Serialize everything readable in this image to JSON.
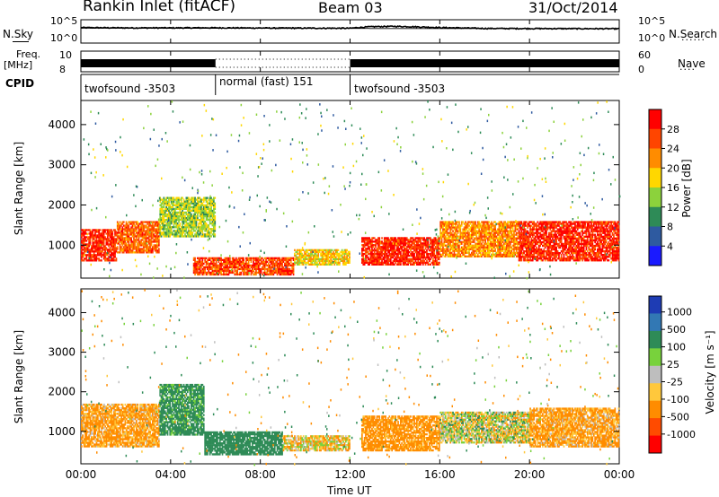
{
  "header": {
    "title": "Rankin Inlet (fitACF)",
    "beam": "Beam 03",
    "date": "31/Oct/2014"
  },
  "noise_panel": {
    "left_label": "N.Sky",
    "right_label": "N.Search",
    "left_top": "10^5",
    "left_bottom": "10^0",
    "right_top": "10^5",
    "right_bottom": "10^0"
  },
  "freq_panel": {
    "left_label_1": "Freq.",
    "left_label_2": "[MHz]",
    "right_label": "Nave",
    "left_top": "10",
    "left_bottom": "8",
    "right_top": "60",
    "right_bottom": "0"
  },
  "cpid_panel": {
    "label": "CPID",
    "segments": [
      {
        "name": "twofsound -3503",
        "start_hour": 0,
        "end_hour": 6
      },
      {
        "name": "normal (fast) 151",
        "start_hour": 6,
        "end_hour": 12
      },
      {
        "name": "twofsound -3503",
        "start_hour": 12,
        "end_hour": 24
      }
    ]
  },
  "power_colorbar": {
    "label": "Power [dB]",
    "ticks": [
      "28",
      "24",
      "20",
      "16",
      "12",
      "8",
      "4"
    ],
    "colors": [
      "#ff0000",
      "#ff4500",
      "#ff8c00",
      "#ffd700",
      "#8cd23c",
      "#2e8b57",
      "#2e5aa0",
      "#1a1aff"
    ]
  },
  "velocity_colorbar": {
    "label": "Velocity [m s⁻¹]",
    "ticks": [
      "1000",
      "500",
      "100",
      "25",
      "-25",
      "-100",
      "-500",
      "-1000"
    ],
    "colors": [
      "#1e3cb4",
      "#3278b4",
      "#2e8b57",
      "#78d23c",
      "#bebebe",
      "#ffc83c",
      "#ff8c00",
      "#ff4b00",
      "#ff0000"
    ]
  },
  "chart_data": [
    {
      "type": "line",
      "title": "",
      "xlabel": "Time UT",
      "x_ticks": [
        "00:00",
        "04:00",
        "08:00",
        "12:00",
        "16:00",
        "20:00",
        "00:00"
      ],
      "xlim": [
        0,
        24
      ],
      "series": [
        {
          "name": "N.Sky",
          "axis": "left",
          "scale": "log",
          "ylim": [
            1,
            100000
          ],
          "x": [
            0,
            2,
            4,
            6,
            8,
            10,
            12,
            13,
            14,
            16,
            18,
            20,
            22,
            24
          ],
          "y": [
            3000,
            2500,
            2500,
            2600,
            2300,
            2200,
            2000,
            5000,
            6000,
            3000,
            1800,
            1700,
            1600,
            1500
          ]
        },
        {
          "name": "N.Search",
          "axis": "right",
          "scale": "log",
          "ylim": [
            1,
            100000
          ],
          "x": [
            0,
            24
          ],
          "y": [
            2000,
            1500
          ]
        }
      ]
    },
    {
      "type": "line",
      "xlim": [
        0,
        24
      ],
      "series": [
        {
          "name": "Freq.",
          "axis": "left",
          "units": "MHz",
          "ylim": [
            8,
            10
          ],
          "x": [
            0,
            6,
            6.01,
            12,
            12.01,
            24
          ],
          "y": [
            10,
            10,
            8.2,
            8.2,
            10,
            10
          ]
        },
        {
          "name": "Nave",
          "axis": "right",
          "ylim": [
            0,
            60
          ],
          "x": [
            0,
            24
          ],
          "y": [
            60,
            60
          ]
        }
      ]
    },
    {
      "type": "heatmap",
      "quantity": "Power",
      "units": "dB",
      "xlabel": "",
      "ylabel": "Slant Range [km]",
      "xlim": [
        0,
        24
      ],
      "ylim": [
        180,
        4600
      ],
      "y_ticks": [
        1000,
        2000,
        3000,
        4000
      ],
      "clim": [
        0,
        30
      ],
      "bands": [
        {
          "t_start": 0,
          "t_end": 1.6,
          "range_start": 600,
          "range_end": 1400,
          "value": 28
        },
        {
          "t_start": 1.6,
          "t_end": 3.5,
          "range_start": 800,
          "range_end": 1600,
          "value": 24
        },
        {
          "t_start": 3.5,
          "t_end": 6,
          "range_start": 1200,
          "range_end": 2200,
          "value": 14
        },
        {
          "t_start": 5,
          "t_end": 9.5,
          "range_start": 250,
          "range_end": 700,
          "value": 26
        },
        {
          "t_start": 9.5,
          "t_end": 12,
          "range_start": 500,
          "range_end": 900,
          "value": 18
        },
        {
          "t_start": 12.5,
          "t_end": 16,
          "range_start": 500,
          "range_end": 1200,
          "value": 28
        },
        {
          "t_start": 16,
          "t_end": 19.5,
          "range_start": 700,
          "range_end": 1600,
          "value": 22
        },
        {
          "t_start": 19.5,
          "t_end": 24,
          "range_start": 600,
          "range_end": 1600,
          "value": 28
        }
      ]
    },
    {
      "type": "heatmap",
      "quantity": "Velocity",
      "units": "m s⁻¹",
      "xlabel": "Time UT",
      "ylabel": "Slant Range [km]",
      "xlim": [
        0,
        24
      ],
      "ylim": [
        180,
        4600
      ],
      "y_ticks": [
        1000,
        2000,
        3000,
        4000
      ],
      "clim": [
        -1000,
        1000
      ],
      "bands": [
        {
          "t_start": 0,
          "t_end": 3.5,
          "range_start": 600,
          "range_end": 1700,
          "value": -150
        },
        {
          "t_start": 3.5,
          "t_end": 5.5,
          "range_start": 900,
          "range_end": 2200,
          "value": 200
        },
        {
          "t_start": 5.5,
          "t_end": 9,
          "range_start": 400,
          "range_end": 1000,
          "value": 300
        },
        {
          "t_start": 9,
          "t_end": 12,
          "range_start": 500,
          "range_end": 900,
          "value": -50
        },
        {
          "t_start": 12.5,
          "t_end": 16,
          "range_start": 500,
          "range_end": 1400,
          "value": -200
        },
        {
          "t_start": 16,
          "t_end": 20,
          "range_start": 700,
          "range_end": 1500,
          "value": 0
        },
        {
          "t_start": 20,
          "t_end": 24,
          "range_start": 600,
          "range_end": 1600,
          "value": -150
        }
      ]
    }
  ]
}
